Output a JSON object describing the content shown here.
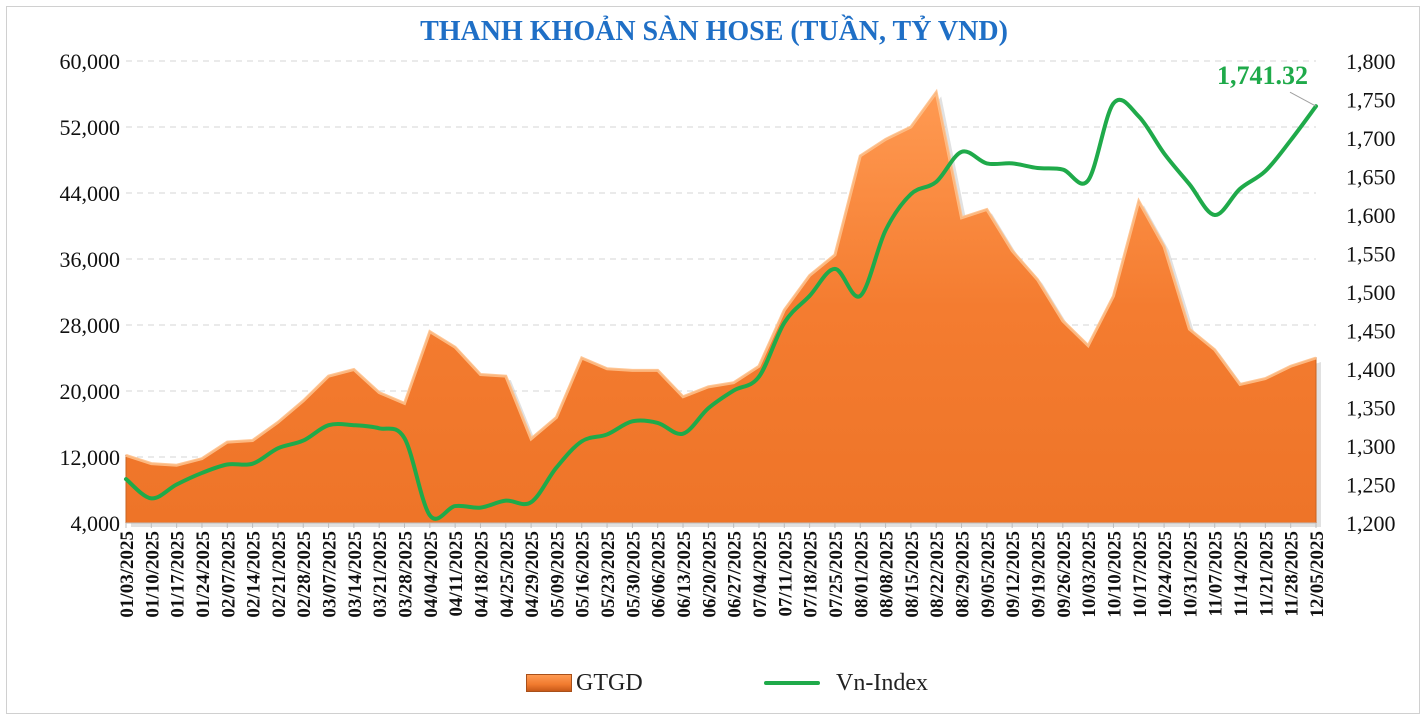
{
  "chart_data": {
    "type": "area",
    "title": "THANH KHOẢN SÀN HOSE (TUẦN, TỶ VND)",
    "categories": [
      "01/03/2025",
      "01/10/2025",
      "01/17/2025",
      "01/24/2025",
      "02/07/2025",
      "02/14/2025",
      "02/21/2025",
      "02/28/2025",
      "03/07/2025",
      "03/14/2025",
      "03/21/2025",
      "03/28/2025",
      "04/04/2025",
      "04/11/2025",
      "04/18/2025",
      "04/25/2025",
      "04/29/2025",
      "05/09/2025",
      "05/16/2025",
      "05/23/2025",
      "05/30/2025",
      "06/06/2025",
      "06/13/2025",
      "06/20/2025",
      "06/27/2025",
      "07/04/2025",
      "07/11/2025",
      "07/18/2025",
      "07/25/2025",
      "08/01/2025",
      "08/08/2025",
      "08/15/2025",
      "08/22/2025",
      "08/29/2025",
      "09/05/2025",
      "09/12/2025",
      "09/19/2025",
      "09/26/2025",
      "10/03/2025",
      "10/10/2025",
      "10/17/2025",
      "10/24/2025",
      "10/31/2025",
      "11/07/2025",
      "11/14/2025",
      "11/21/2025",
      "11/28/2025",
      "12/05/2025"
    ],
    "series": [
      {
        "name": "GTGD",
        "type": "area",
        "axis": "left",
        "color": "#f47c30",
        "values": [
          12200,
          11200,
          11000,
          11800,
          13800,
          14000,
          16200,
          18800,
          21800,
          22600,
          19800,
          18500,
          27200,
          25300,
          22000,
          21800,
          14200,
          16800,
          24000,
          22700,
          22500,
          22500,
          19300,
          20500,
          21000,
          23000,
          29800,
          34000,
          36500,
          48500,
          50500,
          52000,
          56200,
          41000,
          42000,
          37000,
          33500,
          28500,
          25500,
          31500,
          43000,
          37500,
          27500,
          25000,
          20800,
          21500,
          23000,
          24000
        ]
      },
      {
        "name": "Vn-Index",
        "type": "line",
        "axis": "right",
        "color": "#1faa4a",
        "values": [
          1257,
          1232,
          1250,
          1265,
          1276,
          1277,
          1297,
          1307,
          1327,
          1327,
          1323,
          1310,
          1210,
          1222,
          1220,
          1229,
          1227,
          1272,
          1306,
          1315,
          1332,
          1330,
          1316,
          1349,
          1372,
          1390,
          1460,
          1495,
          1530,
          1495,
          1580,
          1627,
          1643,
          1682,
          1667,
          1667,
          1661,
          1659,
          1645,
          1745,
          1728,
          1680,
          1640,
          1600,
          1634,
          1657,
          1697,
          1741.32
        ]
      }
    ],
    "yleft": {
      "min": 4000,
      "max": 60000,
      "ticks": [
        4000,
        12000,
        20000,
        28000,
        36000,
        44000,
        52000,
        60000
      ],
      "tick_labels": [
        "4,000",
        "12,000",
        "20,000",
        "28,000",
        "36,000",
        "44,000",
        "52,000",
        "60,000"
      ]
    },
    "yright": {
      "min": 1200,
      "max": 1800,
      "ticks": [
        1200,
        1250,
        1300,
        1350,
        1400,
        1450,
        1500,
        1550,
        1600,
        1650,
        1700,
        1750,
        1800
      ],
      "tick_labels": [
        "1,200",
        "1,250",
        "1,300",
        "1,350",
        "1,400",
        "1,450",
        "1,500",
        "1,550",
        "1,600",
        "1,650",
        "1,700",
        "1,750",
        "1,800"
      ]
    },
    "annotation": {
      "label": "1,741.32",
      "series": "Vn-Index",
      "index": 47,
      "color": "#1faa4a"
    },
    "grid": true,
    "legend_position": "bottom",
    "legend": [
      "GTGD",
      "Vn-Index"
    ]
  }
}
